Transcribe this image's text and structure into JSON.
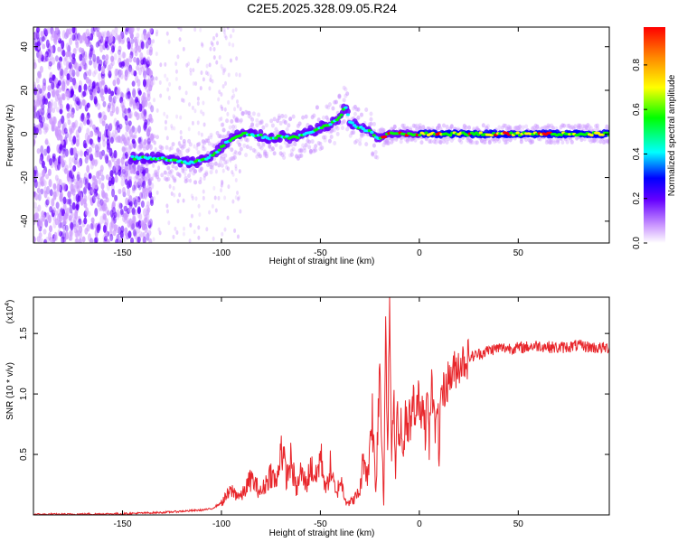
{
  "title": "C2E5.2025.328.09.05.R24",
  "chart_data": [
    {
      "type": "heatmap",
      "xlabel": "Height of straight line (km)",
      "ylabel": "Frequency (Hz)",
      "xlim": [
        -195,
        96
      ],
      "ylim": [
        -50,
        49
      ],
      "xticks": [
        -150,
        -100,
        -50,
        0,
        50
      ],
      "yticks": [
        -40,
        -20,
        0,
        20,
        40
      ],
      "xtick_labels": [
        "-150",
        "-100",
        "-50",
        "0",
        "50"
      ],
      "ytick_labels": [
        "-40",
        "-20",
        "0",
        "20",
        "40"
      ],
      "colorbar": {
        "label": "Normalized spectral amplitude",
        "range": [
          0,
          0.97
        ],
        "ticks": [
          0,
          0.2,
          0.4,
          0.6,
          0.8
        ],
        "tick_labels": [
          "0.0",
          "0.2",
          "0.4",
          "0.6",
          "0.8"
        ],
        "colors": [
          "#ffffff",
          "#cc99ff",
          "#6600ff",
          "#0000ff",
          "#00ffff",
          "#00ff00",
          "#ffff00",
          "#ff8800",
          "#ff0000"
        ]
      },
      "ridge": {
        "x": [
          -145,
          -140,
          -130,
          -125,
          -120,
          -115,
          -110,
          -105,
          -100,
          -95,
          -90,
          -85,
          -80,
          -75,
          -70,
          -65,
          -60,
          -55,
          -50,
          -45,
          -40,
          -37,
          -35,
          -30,
          -25,
          -20,
          -15,
          -10,
          -5,
          0,
          10,
          20,
          50,
          96
        ],
        "freq": [
          -11,
          -11,
          -11,
          -12,
          -13,
          -13,
          -12,
          -10,
          -6,
          -2,
          0,
          0,
          -1,
          -2,
          -1,
          -2,
          -1,
          1,
          3,
          4,
          8,
          13,
          5,
          3,
          1,
          -2,
          0,
          0,
          0,
          0,
          0,
          0,
          0,
          0
        ]
      }
    },
    {
      "type": "line",
      "xlabel": "Height of straight line (km)",
      "ylabel": "SNR (10 * v/v)",
      "multiplier": "(x10",
      "multiplier_exponent": "4",
      "multiplier_close": ")",
      "xlim": [
        -195,
        96
      ],
      "ylim": [
        0,
        1.8
      ],
      "xticks": [
        -150,
        -100,
        -50,
        0,
        50
      ],
      "yticks": [
        0.5,
        1.0,
        1.5
      ],
      "xtick_labels": [
        "-150",
        "-100",
        "-50",
        "0",
        "50"
      ],
      "ytick_labels": [
        "0.5",
        "1.0",
        "1.5"
      ],
      "series": [
        {
          "name": "SNR",
          "color": "#e8262b",
          "x": [
            -195,
            -180,
            -160,
            -150,
            -140,
            -130,
            -120,
            -110,
            -105,
            -100,
            -95,
            -90,
            -85,
            -80,
            -75,
            -72,
            -70,
            -67,
            -65,
            -62,
            -60,
            -57,
            -55,
            -52,
            -50,
            -47,
            -45,
            -42,
            -40,
            -37,
            -35,
            -32,
            -30,
            -28,
            -26,
            -24,
            -22,
            -20,
            -19,
            -18,
            -17,
            -16,
            -15,
            -14,
            -13,
            -12,
            -11,
            -10,
            -9,
            -8,
            -7,
            -6,
            -5,
            -4,
            -3,
            -2,
            -1,
            0,
            1,
            2,
            3,
            4,
            5,
            6,
            7,
            8,
            9,
            10,
            11,
            12,
            14,
            16,
            18,
            20,
            25,
            30,
            35,
            40,
            50,
            60,
            70,
            80,
            90,
            96
          ],
          "values": [
            0.005,
            0.005,
            0.008,
            0.01,
            0.015,
            0.02,
            0.03,
            0.04,
            0.05,
            0.1,
            0.2,
            0.15,
            0.3,
            0.18,
            0.35,
            0.25,
            0.6,
            0.3,
            0.45,
            0.2,
            0.35,
            0.25,
            0.4,
            0.3,
            0.5,
            0.2,
            0.4,
            0.15,
            0.3,
            0.12,
            0.1,
            0.15,
            0.2,
            0.5,
            0.3,
            0.9,
            0.2,
            1.3,
            0.6,
            0.25,
            1.5,
            0.5,
            1.78,
            0.3,
            1.1,
            0.4,
            1.0,
            0.5,
            0.8,
            0.35,
            0.9,
            0.6,
            0.85,
            0.7,
            1.0,
            0.75,
            0.9,
            1.0,
            0.8,
            1.05,
            0.7,
            1.0,
            0.55,
            1.1,
            0.9,
            0.65,
            1.05,
            0.45,
            1.1,
            1.0,
            1.1,
            1.15,
            1.2,
            1.25,
            1.3,
            1.33,
            1.36,
            1.38,
            1.38,
            1.4,
            1.38,
            1.4,
            1.38,
            1.38
          ]
        }
      ]
    }
  ]
}
